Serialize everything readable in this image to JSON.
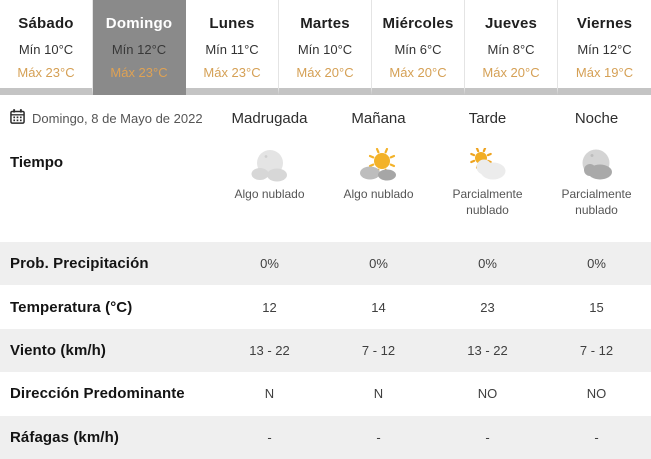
{
  "week_tabs": [
    {
      "day": "Sábado",
      "min": "Mín 10°C",
      "max": "Máx 23°C",
      "selected": false
    },
    {
      "day": "Domingo",
      "min": "Mín 12°C",
      "max": "Máx 23°C",
      "selected": true
    },
    {
      "day": "Lunes",
      "min": "Mín 11°C",
      "max": "Máx 23°C",
      "selected": false
    },
    {
      "day": "Martes",
      "min": "Mín 10°C",
      "max": "Máx 20°C",
      "selected": false
    },
    {
      "day": "Miércoles",
      "min": "Mín 6°C",
      "max": "Máx 20°C",
      "selected": false
    },
    {
      "day": "Jueves",
      "min": "Mín 8°C",
      "max": "Máx 20°C",
      "selected": false
    },
    {
      "day": "Viernes",
      "min": "Mín 12°C",
      "max": "Máx 19°C",
      "selected": false
    }
  ],
  "date_label": "Domingo, 8 de Mayo de 2022",
  "calendar_icon": "calendar-icon",
  "columns": [
    "Madrugada",
    "Mañana",
    "Tarde",
    "Noche"
  ],
  "weather_row": {
    "label": "Tiempo",
    "cells": [
      {
        "icon": "moon-behind-clouds-icon",
        "label": "Algo nublado"
      },
      {
        "icon": "sun-behind-cloud-icon",
        "label": "Algo nublado"
      },
      {
        "icon": "sun-and-cloud-icon",
        "label": "Parcialmente nublado"
      },
      {
        "icon": "moon-and-cloud-icon",
        "label": "Parcialmente nublado"
      }
    ]
  },
  "rows": [
    {
      "label": "Prob. Precipitación",
      "values": [
        "0%",
        "0%",
        "0%",
        "0%"
      ]
    },
    {
      "label": "Temperatura (°C)",
      "values": [
        "12",
        "14",
        "23",
        "15"
      ]
    },
    {
      "label": "Viento (km/h)",
      "values": [
        "13 - 22",
        "7 - 12",
        "13 - 22",
        "7 - 12"
      ]
    },
    {
      "label": "Dirección Predominante",
      "values": [
        "N",
        "N",
        "NO",
        "NO"
      ]
    },
    {
      "label": "Ráfagas (km/h)",
      "values": [
        "-",
        "-",
        "-",
        "-"
      ]
    }
  ],
  "colors": {
    "selected_tab_bg": "#8a8a8a",
    "max_temp_text": "#d5a055",
    "alt_row_bg": "#efefef",
    "tab_strip": "#c4c4c4",
    "sun": "#f3b229"
  }
}
